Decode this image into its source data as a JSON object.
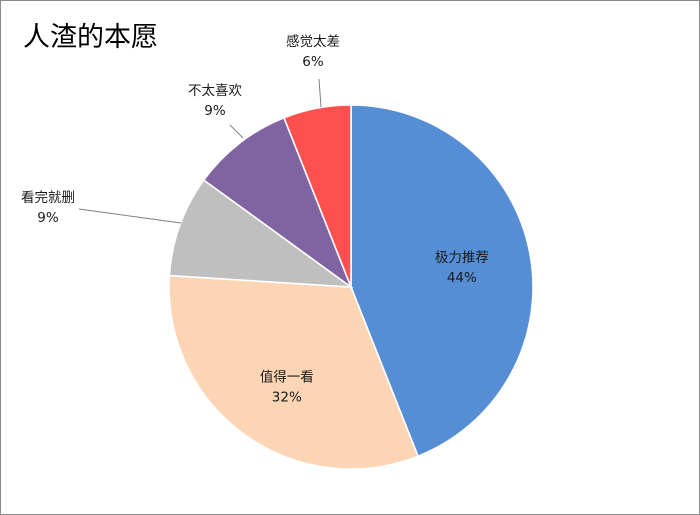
{
  "chart_data": {
    "type": "pie",
    "title": "人渣的本愿",
    "start_angle_deg": 0,
    "direction": "clockwise",
    "slices": [
      {
        "label": "极力推荐",
        "value": 44,
        "display": "44%",
        "color": "#558ed5"
      },
      {
        "label": "值得一看",
        "value": 32,
        "display": "32%",
        "color": "#fcd5b5"
      },
      {
        "label": "看完就删",
        "value": 9,
        "display": "9%",
        "color": "#bfbfbf"
      },
      {
        "label": "不太喜欢",
        "value": 9,
        "display": "9%",
        "color": "#8064a2"
      },
      {
        "label": "感觉太差",
        "value": 6,
        "display": "6%",
        "color": "#ff5050"
      }
    ],
    "legend": "none"
  }
}
